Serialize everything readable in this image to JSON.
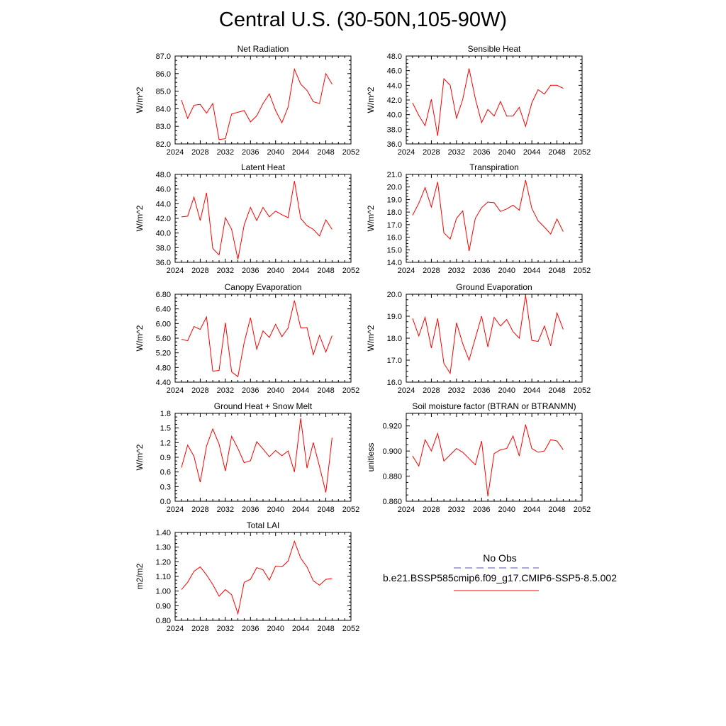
{
  "title": "Central U.S. (30-50N,105-90W)",
  "line_color": "#ff0000",
  "obs_color": "#5050c8",
  "legend": {
    "obs_label": "No Obs",
    "model_label": "b.e21.BSSP585cmip6.f09_g17.CMIP6-SSP5-8.5.002"
  },
  "chart_data": [
    {
      "type": "line",
      "title": "Net Radiation",
      "xlabel": "",
      "ylabel": "W/m^2",
      "xlim": [
        2024,
        2052
      ],
      "ylim": [
        82.0,
        87.0
      ],
      "xticks": [
        2024,
        2028,
        2032,
        2036,
        2040,
        2044,
        2048,
        2052
      ],
      "yticks": [
        "82.0",
        "83.0",
        "84.0",
        "85.0",
        "86.0",
        "87.0"
      ],
      "x": [
        2025,
        2026,
        2027,
        2028,
        2029,
        2030,
        2031,
        2032,
        2033,
        2034,
        2035,
        2036,
        2037,
        2038,
        2039,
        2040,
        2041,
        2042,
        2043,
        2044,
        2045,
        2046,
        2047,
        2048,
        2049
      ],
      "y": [
        84.5,
        83.45,
        84.2,
        84.25,
        83.75,
        84.3,
        82.25,
        82.3,
        83.7,
        83.8,
        83.9,
        83.25,
        83.6,
        84.3,
        84.85,
        83.9,
        83.2,
        84.1,
        86.25,
        85.4,
        85.05,
        84.4,
        84.3,
        86.0,
        85.4
      ],
      "series": [
        {
          "name": "b.e21.BSSP585cmip6.f09_g17.CMIP6-SSP5-8.5.002"
        }
      ]
    },
    {
      "type": "line",
      "title": "Sensible Heat",
      "xlabel": "",
      "ylabel": "W/m^2",
      "xlim": [
        2024,
        2052
      ],
      "ylim": [
        36.0,
        48.0
      ],
      "xticks": [
        2024,
        2028,
        2032,
        2036,
        2040,
        2044,
        2048,
        2052
      ],
      "yticks": [
        "36.0",
        "38.0",
        "40.0",
        "42.0",
        "44.0",
        "46.0",
        "48.0"
      ],
      "x": [
        2025,
        2026,
        2027,
        2028,
        2029,
        2030,
        2031,
        2032,
        2033,
        2034,
        2035,
        2036,
        2037,
        2038,
        2039,
        2040,
        2041,
        2042,
        2043,
        2044,
        2045,
        2046,
        2047,
        2048,
        2049
      ],
      "y": [
        41.6,
        39.9,
        38.5,
        42.1,
        37.1,
        44.9,
        44.0,
        39.5,
        42.1,
        46.3,
        42.2,
        38.9,
        40.7,
        39.8,
        41.8,
        39.8,
        39.8,
        41.0,
        38.4,
        41.6,
        43.4,
        42.8,
        44.0,
        44.0,
        43.6
      ],
      "series": [
        {
          "name": "b.e21.BSSP585cmip6.f09_g17.CMIP6-SSP5-8.5.002"
        }
      ]
    },
    {
      "type": "line",
      "title": "Latent Heat",
      "xlabel": "",
      "ylabel": "W/m^2",
      "xlim": [
        2024,
        2052
      ],
      "ylim": [
        36.0,
        48.0
      ],
      "xticks": [
        2024,
        2028,
        2032,
        2036,
        2040,
        2044,
        2048,
        2052
      ],
      "yticks": [
        "36.0",
        "38.0",
        "40.0",
        "42.0",
        "44.0",
        "46.0",
        "48.0"
      ],
      "x": [
        2025,
        2026,
        2027,
        2028,
        2029,
        2030,
        2031,
        2032,
        2033,
        2034,
        2035,
        2036,
        2037,
        2038,
        2039,
        2040,
        2041,
        2042,
        2043,
        2044,
        2045,
        2046,
        2047,
        2048,
        2049
      ],
      "y": [
        42.2,
        42.3,
        44.9,
        41.7,
        45.5,
        37.9,
        37.0,
        42.1,
        40.5,
        36.4,
        41.1,
        43.5,
        41.7,
        43.5,
        42.2,
        43.0,
        42.5,
        42.1,
        47.1,
        42.0,
        41.0,
        40.5,
        39.6,
        41.8,
        40.5
      ],
      "series": [
        {
          "name": "b.e21.BSSP585cmip6.f09_g17.CMIP6-SSP5-8.5.002"
        }
      ]
    },
    {
      "type": "line",
      "title": "Transpiration",
      "xlabel": "",
      "ylabel": "W/m^2",
      "xlim": [
        2024,
        2052
      ],
      "ylim": [
        14.0,
        21.0
      ],
      "xticks": [
        2024,
        2028,
        2032,
        2036,
        2040,
        2044,
        2048,
        2052
      ],
      "yticks": [
        "14.0",
        "15.0",
        "16.0",
        "17.0",
        "18.0",
        "19.0",
        "20.0",
        "21.0"
      ],
      "x": [
        2025,
        2026,
        2027,
        2028,
        2029,
        2030,
        2031,
        2032,
        2033,
        2034,
        2035,
        2036,
        2037,
        2038,
        2039,
        2040,
        2041,
        2042,
        2043,
        2044,
        2045,
        2046,
        2047,
        2048,
        2049
      ],
      "y": [
        17.75,
        18.7,
        19.95,
        18.4,
        20.4,
        16.35,
        15.85,
        17.5,
        18.1,
        14.9,
        17.5,
        18.35,
        18.8,
        18.75,
        18.05,
        18.25,
        18.55,
        18.15,
        20.55,
        18.3,
        17.3,
        16.8,
        16.25,
        17.45,
        16.45
      ],
      "series": [
        {
          "name": "b.e21.BSSP585cmip6.f09_g17.CMIP6-SSP5-8.5.002"
        }
      ]
    },
    {
      "type": "line",
      "title": "Canopy Evaporation",
      "xlabel": "",
      "ylabel": "W/m^2",
      "xlim": [
        2024,
        2052
      ],
      "ylim": [
        4.4,
        6.8
      ],
      "xticks": [
        2024,
        2028,
        2032,
        2036,
        2040,
        2044,
        2048,
        2052
      ],
      "yticks": [
        "4.40",
        "4.80",
        "5.20",
        "5.60",
        "6.00",
        "6.40",
        "6.80"
      ],
      "x": [
        2025,
        2026,
        2027,
        2028,
        2029,
        2030,
        2031,
        2032,
        2033,
        2034,
        2035,
        2036,
        2037,
        2038,
        2039,
        2040,
        2041,
        2042,
        2043,
        2044,
        2045,
        2046,
        2047,
        2048,
        2049
      ],
      "y": [
        5.57,
        5.53,
        5.92,
        5.84,
        6.18,
        4.7,
        4.72,
        6.02,
        4.68,
        4.55,
        5.48,
        6.16,
        5.3,
        5.8,
        5.62,
        5.98,
        5.64,
        5.88,
        6.63,
        5.88,
        5.89,
        5.15,
        5.68,
        5.22,
        5.67
      ],
      "series": [
        {
          "name": "b.e21.BSSP585cmip6.f09_g17.CMIP6-SSP5-8.5.002"
        }
      ]
    },
    {
      "type": "line",
      "title": "Ground Evaporation",
      "xlabel": "",
      "ylabel": "W/m^2",
      "xlim": [
        2024,
        2052
      ],
      "ylim": [
        16.0,
        20.0
      ],
      "xticks": [
        2024,
        2028,
        2032,
        2036,
        2040,
        2044,
        2048,
        2052
      ],
      "yticks": [
        "16.0",
        "17.0",
        "18.0",
        "19.0",
        "20.0"
      ],
      "x": [
        2025,
        2026,
        2027,
        2028,
        2029,
        2030,
        2031,
        2032,
        2033,
        2034,
        2035,
        2036,
        2037,
        2038,
        2039,
        2040,
        2041,
        2042,
        2043,
        2044,
        2045,
        2046,
        2047,
        2048,
        2049
      ],
      "y": [
        18.9,
        18.1,
        18.95,
        17.55,
        18.9,
        16.85,
        16.4,
        18.7,
        17.75,
        17.0,
        18.0,
        19.0,
        17.6,
        18.95,
        18.55,
        18.85,
        18.3,
        18.0,
        19.95,
        17.9,
        17.85,
        18.55,
        17.65,
        19.15,
        18.4
      ],
      "series": [
        {
          "name": "b.e21.BSSP585cmip6.f09_g17.CMIP6-SSP5-8.5.002"
        }
      ]
    },
    {
      "type": "line",
      "title": "Ground Heat + Snow Melt",
      "xlabel": "",
      "ylabel": "W/m^2",
      "xlim": [
        2024,
        2052
      ],
      "ylim": [
        0.0,
        1.8
      ],
      "xticks": [
        2024,
        2028,
        2032,
        2036,
        2040,
        2044,
        2048,
        2052
      ],
      "yticks": [
        "0.0",
        "0.3",
        "0.6",
        "0.9",
        "1.2",
        "1.5",
        "1.8"
      ],
      "x": [
        2025,
        2026,
        2027,
        2028,
        2029,
        2030,
        2031,
        2032,
        2033,
        2034,
        2035,
        2036,
        2037,
        2038,
        2039,
        2040,
        2041,
        2042,
        2043,
        2044,
        2045,
        2046,
        2047,
        2048,
        2049
      ],
      "y": [
        0.69,
        1.15,
        0.92,
        0.39,
        1.13,
        1.48,
        1.17,
        0.62,
        1.33,
        1.08,
        0.79,
        0.83,
        1.22,
        1.07,
        0.91,
        1.04,
        0.93,
        1.03,
        0.6,
        1.7,
        0.68,
        1.2,
        0.71,
        0.18,
        1.3
      ],
      "series": [
        {
          "name": "b.e21.BSSP585cmip6.f09_g17.CMIP6-SSP5-8.5.002"
        }
      ]
    },
    {
      "type": "line",
      "title": "Soil moisture factor (BTRAN or BTRANMN)",
      "xlabel": "",
      "ylabel": "unitless",
      "xlim": [
        2024,
        2052
      ],
      "ylim": [
        0.86,
        0.93
      ],
      "xticks": [
        2024,
        2028,
        2032,
        2036,
        2040,
        2044,
        2048,
        2052
      ],
      "yticks": [
        "0.860",
        "0.880",
        "0.900",
        "0.920"
      ],
      "x": [
        2025,
        2026,
        2027,
        2028,
        2029,
        2030,
        2031,
        2032,
        2033,
        2034,
        2035,
        2036,
        2037,
        2038,
        2039,
        2040,
        2041,
        2042,
        2043,
        2044,
        2045,
        2046,
        2047,
        2048,
        2049
      ],
      "y": [
        0.896,
        0.888,
        0.909,
        0.9,
        0.914,
        0.892,
        0.897,
        0.902,
        0.899,
        0.894,
        0.889,
        0.908,
        0.864,
        0.898,
        0.901,
        0.902,
        0.912,
        0.896,
        0.921,
        0.902,
        0.899,
        0.9,
        0.909,
        0.908,
        0.901
      ],
      "series": [
        {
          "name": "b.e21.BSSP585cmip6.f09_g17.CMIP6-SSP5-8.5.002"
        }
      ]
    },
    {
      "type": "line",
      "title": "Total LAI",
      "xlabel": "",
      "ylabel": "m2/m2",
      "xlim": [
        2024,
        2052
      ],
      "ylim": [
        0.8,
        1.4
      ],
      "xticks": [
        2024,
        2028,
        2032,
        2036,
        2040,
        2044,
        2048,
        2052
      ],
      "yticks": [
        "0.80",
        "0.90",
        "1.00",
        "1.10",
        "1.20",
        "1.30",
        "1.40"
      ],
      "x": [
        2025,
        2026,
        2027,
        2028,
        2029,
        2030,
        2031,
        2032,
        2033,
        2034,
        2035,
        2036,
        2037,
        2038,
        2039,
        2040,
        2041,
        2042,
        2043,
        2044,
        2045,
        2046,
        2047,
        2048,
        2049
      ],
      "y": [
        1.01,
        1.06,
        1.135,
        1.165,
        1.11,
        1.045,
        0.965,
        1.01,
        0.975,
        0.845,
        1.06,
        1.08,
        1.16,
        1.145,
        1.075,
        1.17,
        1.165,
        1.205,
        1.34,
        1.225,
        1.165,
        1.07,
        1.04,
        1.08,
        1.085
      ],
      "series": [
        {
          "name": "b.e21.BSSP585cmip6.f09_g17.CMIP6-SSP5-8.5.002"
        }
      ]
    }
  ]
}
